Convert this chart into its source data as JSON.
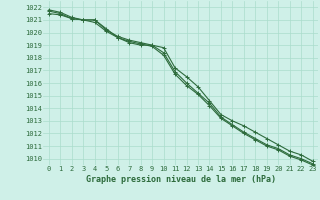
{
  "x": [
    0,
    1,
    2,
    3,
    4,
    5,
    6,
    7,
    8,
    9,
    10,
    11,
    12,
    13,
    14,
    15,
    16,
    17,
    18,
    19,
    20,
    21,
    22,
    23
  ],
  "line1": [
    1021.5,
    1021.4,
    1021.1,
    1021.0,
    1021.0,
    1020.3,
    1019.6,
    1019.2,
    1019.0,
    1019.0,
    1018.8,
    1017.2,
    1016.5,
    1015.7,
    1014.6,
    1013.5,
    1013.0,
    1012.6,
    1012.1,
    1011.6,
    1011.1,
    1010.6,
    1010.3,
    1009.8
  ],
  "line2": [
    1021.7,
    1021.5,
    1021.1,
    1021.0,
    1020.8,
    1020.1,
    1019.6,
    1019.3,
    1019.1,
    1018.9,
    1018.2,
    1016.7,
    1015.8,
    1015.1,
    1014.2,
    1013.2,
    1012.6,
    1012.0,
    1011.5,
    1011.0,
    1010.7,
    1010.2,
    1009.9,
    1009.5
  ],
  "line3": [
    1021.8,
    1021.6,
    1021.2,
    1021.0,
    1021.0,
    1020.2,
    1019.7,
    1019.4,
    1019.2,
    1019.0,
    1018.4,
    1016.9,
    1016.0,
    1015.2,
    1014.4,
    1013.3,
    1012.7,
    1012.1,
    1011.6,
    1011.1,
    1010.8,
    1010.3,
    1010.0,
    1009.6
  ],
  "bg_color": "#cff0e8",
  "line_color": "#2d6b3c",
  "grid_color": "#aaddcc",
  "text_color": "#2d6b3c",
  "xlabel": "Graphe pression niveau de la mer (hPa)",
  "ylim": [
    1009.5,
    1022.5
  ],
  "xlim": [
    -0.5,
    23.5
  ],
  "yticks": [
    1010,
    1011,
    1012,
    1013,
    1014,
    1015,
    1016,
    1017,
    1018,
    1019,
    1020,
    1021,
    1022
  ],
  "xticks": [
    0,
    1,
    2,
    3,
    4,
    5,
    6,
    7,
    8,
    9,
    10,
    11,
    12,
    13,
    14,
    15,
    16,
    17,
    18,
    19,
    20,
    21,
    22,
    23
  ],
  "marker": "+",
  "markersize": 3,
  "linewidth": 0.8,
  "tick_fontsize": 5,
  "xlabel_fontsize": 6
}
